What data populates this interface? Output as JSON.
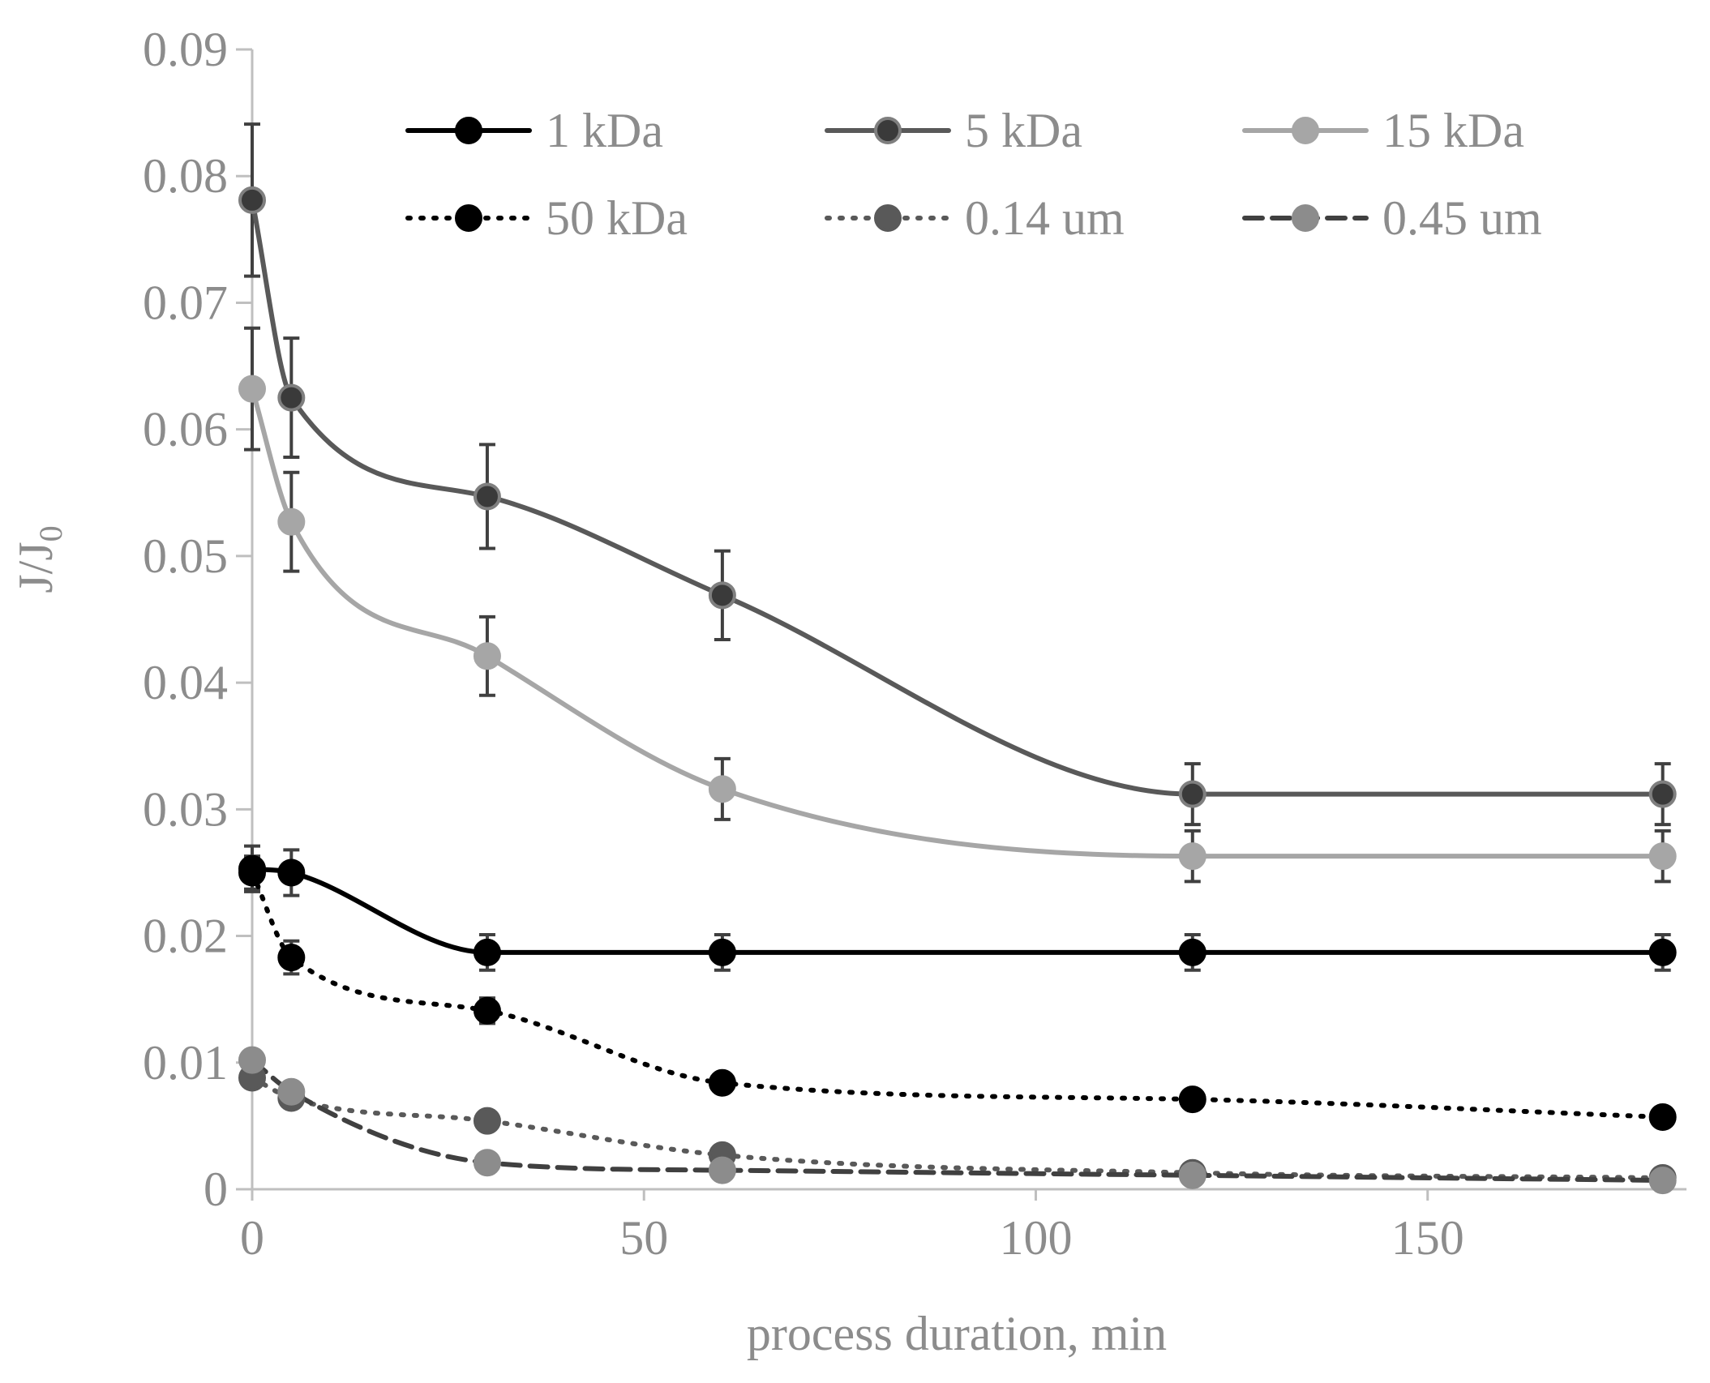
{
  "chart_data": {
    "type": "line",
    "title": "",
    "xlabel": "process duration, min",
    "ylabel": {
      "main": "J/J",
      "subscript": "0"
    },
    "xlim": [
      0,
      182
    ],
    "ylim": [
      0,
      0.09
    ],
    "x_ticks": [
      0,
      50,
      100,
      150
    ],
    "x_tick_labels": [
      "0",
      "50",
      "100",
      "150"
    ],
    "y_ticks": [
      0,
      0.01,
      0.02,
      0.03,
      0.04,
      0.05,
      0.06,
      0.07,
      0.08,
      0.09
    ],
    "y_tick_labels": [
      "0",
      "0.01",
      "0.02",
      "0.03",
      "0.04",
      "0.05",
      "0.06",
      "0.07",
      "0.08",
      "0.09"
    ],
    "grid": false,
    "legend_position": "top",
    "x": [
      0,
      5,
      30,
      60,
      120,
      180
    ],
    "series": [
      {
        "name": "1 kDa",
        "values": [
          0.0253,
          0.025,
          0.0187,
          0.0187,
          0.0187,
          0.0187
        ],
        "errors": [
          0.0018,
          0.0018,
          0.0014,
          0.0014,
          0.0014,
          0.0014
        ],
        "color": "#000000",
        "marker_fill": "#000000",
        "marker_stroke": "#000000",
        "dash": "solid"
      },
      {
        "name": "5 kDa",
        "values": [
          0.0781,
          0.0625,
          0.0547,
          0.0469,
          0.0312,
          0.0312
        ],
        "errors": [
          0.006,
          0.0047,
          0.0041,
          0.0035,
          0.0024,
          0.0024
        ],
        "color": "#595959",
        "marker_fill": "#3a3a3a",
        "marker_stroke": "#7f7f7f",
        "dash": "solid"
      },
      {
        "name": "15 kDa",
        "values": [
          0.0632,
          0.0527,
          0.0421,
          0.0316,
          0.0263,
          0.0263
        ],
        "errors": [
          0.0048,
          0.0039,
          0.0031,
          0.0024,
          0.002,
          0.002
        ],
        "color": "#a6a6a6",
        "marker_fill": "#a6a6a6",
        "marker_stroke": "#a6a6a6",
        "dash": "solid"
      },
      {
        "name": "50 kDa",
        "values": [
          0.025,
          0.0183,
          0.0141,
          0.0084,
          0.0071,
          0.0057
        ],
        "errors": [
          0.0013,
          0.0013,
          0.001,
          0,
          0,
          0
        ],
        "color": "#000000",
        "marker_fill": "#000000",
        "marker_stroke": "#000000",
        "dash": "dotted"
      },
      {
        "name": "0.14 um",
        "values": [
          0.0088,
          0.0072,
          0.0054,
          0.0027,
          0.0013,
          0.0009
        ],
        "errors": [
          0,
          0,
          0,
          0,
          0,
          0
        ],
        "color": "#595959",
        "marker_fill": "#595959",
        "marker_stroke": "#595959",
        "dash": "dotted"
      },
      {
        "name": "0.45 um",
        "values": [
          0.0102,
          0.0077,
          0.0021,
          0.0015,
          0.0011,
          0.0007
        ],
        "errors": [
          0,
          0,
          0,
          0,
          0,
          0
        ],
        "color": "#404040",
        "marker_fill": "#8c8c8c",
        "marker_stroke": "#8c8c8c",
        "dash": "dashed"
      }
    ]
  }
}
